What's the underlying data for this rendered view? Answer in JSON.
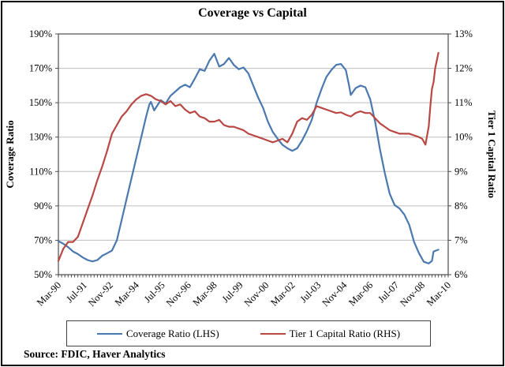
{
  "title": "Coverage vs Capital",
  "source": "Source:  FDIC, Haver Analytics",
  "colors": {
    "coverage": "#4a78af",
    "tier1": "#b94844",
    "grid": "#bdbdbd",
    "axis": "#4d4d4d",
    "text": "#000000"
  },
  "legend": {
    "items": [
      {
        "label": "Coverage Ratio (LHS)",
        "series": "coverage"
      },
      {
        "label": "Tier 1 Capital Ratio (RHS)",
        "series": "tier1"
      }
    ]
  },
  "chart_data": {
    "type": "line",
    "title": "Coverage vs Capital",
    "x_unit": "months since Mar-1990",
    "x_range": [
      0,
      240
    ],
    "x_tick_label_step_months": 16,
    "x_minor_tick_step_months": 2,
    "x_tick_labels": [
      "Mar-90",
      "Jul-91",
      "Nov-92",
      "Mar-94",
      "Jul-95",
      "Nov-96",
      "Mar-98",
      "Jul-99",
      "Nov-00",
      "Mar-02",
      "Jul-03",
      "Nov-04",
      "Mar-06",
      "Jul-07",
      "Nov-08",
      "Mar-10"
    ],
    "grid": true,
    "legend_position": "bottom",
    "left_axis": {
      "label": "Coverage Ratio",
      "min": 50,
      "max": 190,
      "step": 20,
      "tick_labels": [
        "190%",
        "170%",
        "150%",
        "130%",
        "110%",
        "90%",
        "70%",
        "50%"
      ]
    },
    "right_axis": {
      "label": "Tier 1 Capital Ratio",
      "min": 6,
      "max": 13,
      "step": 1,
      "tick_labels": [
        "13%",
        "12%",
        "11%",
        "10%",
        "9%",
        "8%",
        "7%",
        "6%"
      ]
    },
    "series": [
      {
        "name": "Coverage Ratio (LHS)",
        "axis": "left",
        "color_key": "coverage",
        "points": [
          [
            0,
            69.5
          ],
          [
            3,
            68
          ],
          [
            6,
            66
          ],
          [
            9,
            63.5
          ],
          [
            12,
            62
          ],
          [
            15,
            60
          ],
          [
            18,
            58.5
          ],
          [
            21,
            57.7
          ],
          [
            24,
            58.5
          ],
          [
            27,
            61
          ],
          [
            30,
            62.5
          ],
          [
            33,
            64
          ],
          [
            36,
            70
          ],
          [
            39,
            82
          ],
          [
            42,
            94
          ],
          [
            45,
            106
          ],
          [
            48,
            118
          ],
          [
            51,
            130
          ],
          [
            54,
            142
          ],
          [
            56,
            149
          ],
          [
            57,
            150.5
          ],
          [
            59,
            145.5
          ],
          [
            63,
            151.5
          ],
          [
            66,
            149.5
          ],
          [
            69,
            154
          ],
          [
            72,
            156.5
          ],
          [
            75,
            159
          ],
          [
            78,
            160.5
          ],
          [
            81,
            159
          ],
          [
            84,
            164
          ],
          [
            87,
            169.5
          ],
          [
            90,
            168.5
          ],
          [
            93,
            174.5
          ],
          [
            96,
            178.5
          ],
          [
            99,
            171
          ],
          [
            102,
            172.5
          ],
          [
            105,
            176
          ],
          [
            108,
            172
          ],
          [
            111,
            169.5
          ],
          [
            114,
            170.5
          ],
          [
            117,
            167
          ],
          [
            120,
            160
          ],
          [
            123,
            153
          ],
          [
            126,
            147
          ],
          [
            129,
            139
          ],
          [
            132,
            133
          ],
          [
            135,
            129
          ],
          [
            138,
            125.5
          ],
          [
            141,
            123.5
          ],
          [
            144,
            122
          ],
          [
            147,
            123.5
          ],
          [
            150,
            128
          ],
          [
            153,
            133.5
          ],
          [
            156,
            140
          ],
          [
            159,
            150
          ],
          [
            162,
            158
          ],
          [
            165,
            165
          ],
          [
            168,
            169
          ],
          [
            171,
            172
          ],
          [
            174,
            172.5
          ],
          [
            177,
            169
          ],
          [
            179,
            160
          ],
          [
            180,
            154.5
          ],
          [
            183,
            158.5
          ],
          [
            186,
            160
          ],
          [
            189,
            159
          ],
          [
            192,
            152
          ],
          [
            195,
            139
          ],
          [
            198,
            123
          ],
          [
            201,
            109
          ],
          [
            204,
            97
          ],
          [
            207,
            90.5
          ],
          [
            210,
            88.5
          ],
          [
            213,
            85
          ],
          [
            216,
            79
          ],
          [
            219,
            69
          ],
          [
            222,
            62.5
          ],
          [
            225,
            57.5
          ],
          [
            228,
            56.5
          ],
          [
            230,
            58
          ],
          [
            231,
            63.5
          ],
          [
            234,
            64.5
          ]
        ]
      },
      {
        "name": "Tier 1 Capital Ratio (RHS)",
        "axis": "right",
        "color_key": "tier1",
        "points": [
          [
            0,
            6.4
          ],
          [
            3,
            6.75
          ],
          [
            6,
            6.95
          ],
          [
            9,
            6.95
          ],
          [
            12,
            7.1
          ],
          [
            15,
            7.5
          ],
          [
            18,
            7.9
          ],
          [
            21,
            8.3
          ],
          [
            24,
            8.75
          ],
          [
            27,
            9.15
          ],
          [
            30,
            9.6
          ],
          [
            33,
            10.1
          ],
          [
            36,
            10.35
          ],
          [
            39,
            10.6
          ],
          [
            42,
            10.75
          ],
          [
            45,
            10.95
          ],
          [
            48,
            11.1
          ],
          [
            51,
            11.2
          ],
          [
            54,
            11.25
          ],
          [
            57,
            11.2
          ],
          [
            60,
            11.1
          ],
          [
            63,
            11.05
          ],
          [
            66,
            10.95
          ],
          [
            69,
            11.05
          ],
          [
            72,
            10.9
          ],
          [
            75,
            10.95
          ],
          [
            78,
            10.8
          ],
          [
            81,
            10.7
          ],
          [
            84,
            10.75
          ],
          [
            87,
            10.6
          ],
          [
            90,
            10.55
          ],
          [
            93,
            10.45
          ],
          [
            96,
            10.45
          ],
          [
            99,
            10.5
          ],
          [
            102,
            10.35
          ],
          [
            105,
            10.3
          ],
          [
            108,
            10.3
          ],
          [
            111,
            10.25
          ],
          [
            114,
            10.2
          ],
          [
            117,
            10.1
          ],
          [
            120,
            10.05
          ],
          [
            123,
            10
          ],
          [
            126,
            9.95
          ],
          [
            129,
            9.9
          ],
          [
            132,
            9.85
          ],
          [
            135,
            9.9
          ],
          [
            138,
            9.95
          ],
          [
            141,
            9.85
          ],
          [
            144,
            10.1
          ],
          [
            147,
            10.45
          ],
          [
            150,
            10.55
          ],
          [
            153,
            10.5
          ],
          [
            156,
            10.65
          ],
          [
            159,
            10.9
          ],
          [
            162,
            10.85
          ],
          [
            165,
            10.8
          ],
          [
            168,
            10.75
          ],
          [
            171,
            10.7
          ],
          [
            174,
            10.72
          ],
          [
            177,
            10.65
          ],
          [
            180,
            10.6
          ],
          [
            183,
            10.7
          ],
          [
            186,
            10.75
          ],
          [
            189,
            10.7
          ],
          [
            192,
            10.7
          ],
          [
            195,
            10.55
          ],
          [
            198,
            10.4
          ],
          [
            201,
            10.3
          ],
          [
            204,
            10.2
          ],
          [
            207,
            10.15
          ],
          [
            210,
            10.1
          ],
          [
            213,
            10.1
          ],
          [
            216,
            10.1
          ],
          [
            219,
            10.05
          ],
          [
            222,
            10
          ],
          [
            224,
            9.95
          ],
          [
            226,
            9.78
          ],
          [
            228,
            10.3
          ],
          [
            229,
            10.9
          ],
          [
            230,
            11.4
          ],
          [
            231,
            11.6
          ],
          [
            232,
            12
          ],
          [
            234,
            12.45
          ]
        ]
      }
    ]
  }
}
